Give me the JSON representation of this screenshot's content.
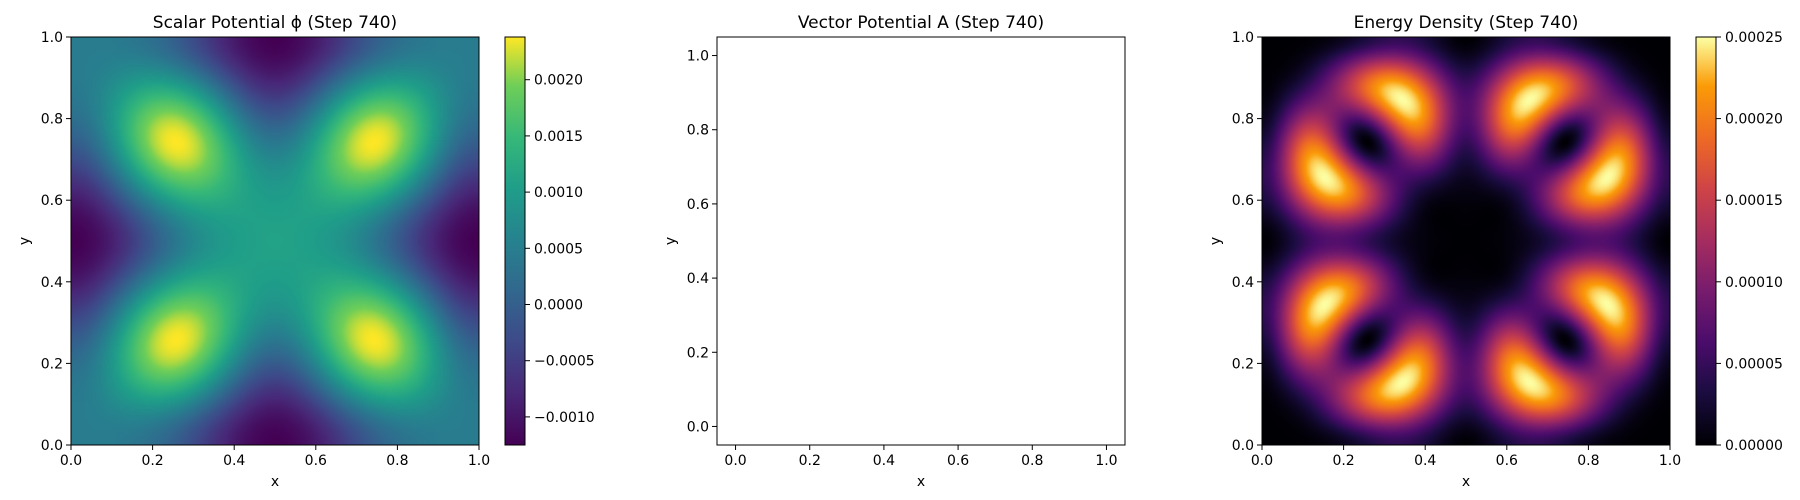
{
  "chart_data": [
    {
      "type": "heatmap",
      "title": "Scalar Potential ϕ (Step 740)",
      "xlabel": "x",
      "ylabel": "y",
      "xlim": [
        0.0,
        1.0
      ],
      "ylim": [
        0.0,
        1.0
      ],
      "xticks": [
        "0.0",
        "0.2",
        "0.4",
        "0.6",
        "0.8",
        "1.0"
      ],
      "yticks": [
        "0.0",
        "0.2",
        "0.4",
        "0.6",
        "0.8",
        "1.0"
      ],
      "colormap": "viridis",
      "colorbar": {
        "min": -0.00125,
        "max": 0.00238,
        "ticks": [
          -0.001,
          -0.0005,
          0.0,
          0.0005,
          0.001,
          0.0015,
          0.002
        ],
        "tick_labels": [
          "−0.0010",
          "−0.0005",
          "0.0000",
          "0.0005",
          "0.0010",
          "0.0015",
          "0.0020"
        ]
      }
    },
    {
      "type": "scatter",
      "title": "Vector Potential A (Step 740)",
      "xlabel": "x",
      "ylabel": "y",
      "xlim": [
        -0.05,
        1.05
      ],
      "ylim": [
        -0.05,
        1.05
      ],
      "xticks": [
        "0.0",
        "0.2",
        "0.4",
        "0.6",
        "0.8",
        "1.0"
      ],
      "yticks": [
        "0.0",
        "0.2",
        "0.4",
        "0.6",
        "0.8",
        "1.0"
      ],
      "values": []
    },
    {
      "type": "heatmap",
      "title": "Energy Density (Step 740)",
      "xlabel": "x",
      "ylabel": "y",
      "xlim": [
        0.0,
        1.0
      ],
      "ylim": [
        0.0,
        1.0
      ],
      "xticks": [
        "0.0",
        "0.2",
        "0.4",
        "0.6",
        "0.8",
        "1.0"
      ],
      "yticks": [
        "0.0",
        "0.2",
        "0.4",
        "0.6",
        "0.8",
        "1.0"
      ],
      "colormap": "inferno",
      "colorbar": {
        "min": 0.0,
        "max": 0.00025,
        "ticks": [
          0.0,
          5e-05,
          0.0001,
          0.00015,
          0.0002,
          0.00025
        ],
        "tick_labels": [
          "0.00000",
          "0.00005",
          "0.00010",
          "0.00015",
          "0.00020",
          "0.00025"
        ]
      }
    }
  ]
}
